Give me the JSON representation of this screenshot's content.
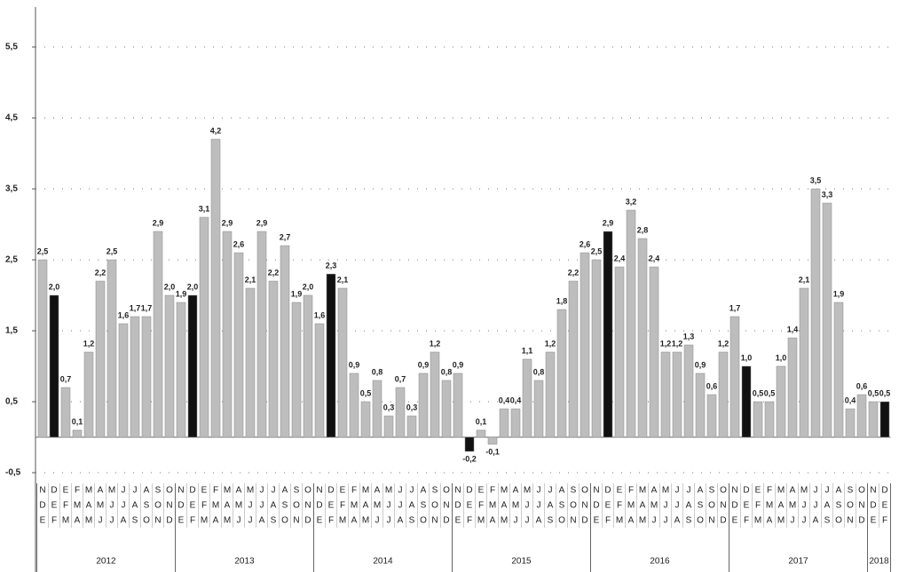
{
  "chart_data": {
    "type": "bar",
    "categories": [
      [
        "N",
        "D",
        "E"
      ],
      [
        "D",
        "E",
        "F"
      ],
      [
        "E",
        "F",
        "M"
      ],
      [
        "F",
        "M",
        "A"
      ],
      [
        "M",
        "A",
        "M"
      ],
      [
        "A",
        "M",
        "J"
      ],
      [
        "M",
        "J",
        "J"
      ],
      [
        "J",
        "J",
        "A"
      ],
      [
        "J",
        "A",
        "S"
      ],
      [
        "A",
        "S",
        "O"
      ],
      [
        "S",
        "O",
        "N"
      ],
      [
        "O",
        "N",
        "D"
      ],
      [
        "N",
        "D",
        "E"
      ],
      [
        "D",
        "E",
        "F"
      ],
      [
        "E",
        "F",
        "M"
      ],
      [
        "F",
        "M",
        "A"
      ],
      [
        "M",
        "A",
        "M"
      ],
      [
        "A",
        "M",
        "J"
      ],
      [
        "M",
        "J",
        "J"
      ],
      [
        "J",
        "J",
        "A"
      ],
      [
        "J",
        "A",
        "S"
      ],
      [
        "A",
        "S",
        "O"
      ],
      [
        "S",
        "O",
        "N"
      ],
      [
        "O",
        "N",
        "D"
      ],
      [
        "N",
        "D",
        "E"
      ],
      [
        "D",
        "E",
        "F"
      ],
      [
        "E",
        "F",
        "M"
      ],
      [
        "F",
        "M",
        "A"
      ],
      [
        "M",
        "A",
        "M"
      ],
      [
        "A",
        "M",
        "J"
      ],
      [
        "M",
        "J",
        "J"
      ],
      [
        "J",
        "J",
        "A"
      ],
      [
        "J",
        "A",
        "S"
      ],
      [
        "A",
        "S",
        "O"
      ],
      [
        "S",
        "O",
        "N"
      ],
      [
        "O",
        "N",
        "D"
      ],
      [
        "N",
        "D",
        "E"
      ],
      [
        "D",
        "E",
        "F"
      ],
      [
        "E",
        "F",
        "M"
      ],
      [
        "F",
        "M",
        "A"
      ],
      [
        "M",
        "A",
        "M"
      ],
      [
        "A",
        "M",
        "J"
      ],
      [
        "M",
        "J",
        "J"
      ],
      [
        "J",
        "J",
        "A"
      ],
      [
        "J",
        "A",
        "S"
      ],
      [
        "A",
        "S",
        "O"
      ],
      [
        "S",
        "O",
        "N"
      ],
      [
        "O",
        "N",
        "D"
      ],
      [
        "N",
        "D",
        "E"
      ],
      [
        "D",
        "E",
        "F"
      ],
      [
        "E",
        "F",
        "M"
      ],
      [
        "F",
        "M",
        "A"
      ],
      [
        "M",
        "A",
        "M"
      ],
      [
        "A",
        "M",
        "J"
      ],
      [
        "M",
        "J",
        "J"
      ],
      [
        "J",
        "J",
        "A"
      ],
      [
        "J",
        "A",
        "S"
      ],
      [
        "A",
        "S",
        "O"
      ],
      [
        "S",
        "O",
        "N"
      ],
      [
        "O",
        "N",
        "D"
      ],
      [
        "N",
        "D",
        "E"
      ],
      [
        "D",
        "E",
        "F"
      ],
      [
        "E",
        "F",
        "M"
      ],
      [
        "F",
        "M",
        "A"
      ],
      [
        "M",
        "A",
        "M"
      ],
      [
        "A",
        "M",
        "J"
      ],
      [
        "M",
        "J",
        "J"
      ],
      [
        "J",
        "J",
        "A"
      ],
      [
        "J",
        "A",
        "S"
      ],
      [
        "A",
        "S",
        "O"
      ],
      [
        "S",
        "O",
        "N"
      ],
      [
        "O",
        "N",
        "D"
      ],
      [
        "N",
        "D",
        "E"
      ],
      [
        "D",
        "E",
        "F"
      ]
    ],
    "years": [
      "2012",
      "2013",
      "2014",
      "2015",
      "2016",
      "2017",
      "2018"
    ],
    "values": [
      2.5,
      2.0,
      0.7,
      0.1,
      1.2,
      2.2,
      2.5,
      1.6,
      1.7,
      1.7,
      2.9,
      2.0,
      1.9,
      2.0,
      3.1,
      4.2,
      2.9,
      2.6,
      2.1,
      2.9,
      2.2,
      2.7,
      1.9,
      2.0,
      1.6,
      2.3,
      2.1,
      0.9,
      0.5,
      0.8,
      0.3,
      0.7,
      0.3,
      0.9,
      1.2,
      0.8,
      0.9,
      -0.2,
      0.1,
      -0.1,
      0.4,
      0.4,
      1.1,
      0.8,
      1.2,
      1.8,
      2.2,
      2.6,
      2.5,
      2.9,
      2.4,
      3.2,
      2.8,
      2.4,
      1.2,
      1.2,
      1.3,
      0.9,
      0.6,
      1.2,
      1.7,
      1.0,
      0.5,
      0.5,
      1.0,
      1.4,
      2.1,
      3.5,
      3.3,
      1.9,
      0.4,
      0.6,
      0.5,
      0.5
    ],
    "value_labels": [
      "2,5",
      "2,0",
      "0,7",
      "0,1",
      "1,2",
      "2,2",
      "2,5",
      "1,6",
      "1,7",
      "1,7",
      "2,9",
      "2,0",
      "1,9",
      "2,0",
      "3,1",
      "4,2",
      "2,9",
      "2,6",
      "2,1",
      "2,9",
      "2,2",
      "2,7",
      "1,9",
      "2,0",
      "1,6",
      "2,3",
      "2,1",
      "0,9",
      "0,5",
      "0,8",
      "0,3",
      "0,7",
      "0,3",
      "0,9",
      "1,2",
      "0,8",
      "0,9",
      "-0,2",
      "0,1",
      "-0,1",
      "0,4",
      "0,4",
      "1,1",
      "0,8",
      "1,2",
      "1,8",
      "2,2",
      "2,6",
      "2,5",
      "2,9",
      "2,4",
      "3,2",
      "2,8",
      "2,4",
      "1,2",
      "1,2",
      "1,3",
      "0,9",
      "0,6",
      "1,2",
      "1,7",
      "1,0",
      "0,5",
      "0,5",
      "1,0",
      "1,4",
      "2,1",
      "3,5",
      "3,3",
      "1,9",
      "0,4",
      "0,6",
      "0,5",
      "0,5"
    ],
    "colors": [
      "#bdbdbd",
      "#111111",
      "#bdbdbd",
      "#bdbdbd",
      "#bdbdbd",
      "#bdbdbd",
      "#bdbdbd",
      "#bdbdbd",
      "#bdbdbd",
      "#bdbdbd",
      "#bdbdbd",
      "#bdbdbd",
      "#bdbdbd",
      "#111111",
      "#bdbdbd",
      "#bdbdbd",
      "#bdbdbd",
      "#bdbdbd",
      "#bdbdbd",
      "#bdbdbd",
      "#bdbdbd",
      "#bdbdbd",
      "#bdbdbd",
      "#bdbdbd",
      "#bdbdbd",
      "#111111",
      "#bdbdbd",
      "#bdbdbd",
      "#bdbdbd",
      "#bdbdbd",
      "#bdbdbd",
      "#bdbdbd",
      "#bdbdbd",
      "#bdbdbd",
      "#bdbdbd",
      "#bdbdbd",
      "#bdbdbd",
      "#111111",
      "#bdbdbd",
      "#bdbdbd",
      "#bdbdbd",
      "#bdbdbd",
      "#bdbdbd",
      "#bdbdbd",
      "#bdbdbd",
      "#bdbdbd",
      "#bdbdbd",
      "#bdbdbd",
      "#bdbdbd",
      "#111111",
      "#bdbdbd",
      "#bdbdbd",
      "#bdbdbd",
      "#bdbdbd",
      "#bdbdbd",
      "#bdbdbd",
      "#bdbdbd",
      "#bdbdbd",
      "#bdbdbd",
      "#bdbdbd",
      "#bdbdbd",
      "#111111",
      "#bdbdbd",
      "#bdbdbd",
      "#bdbdbd",
      "#bdbdbd",
      "#bdbdbd",
      "#bdbdbd",
      "#bdbdbd",
      "#bdbdbd",
      "#bdbdbd",
      "#bdbdbd",
      "#bdbdbd",
      "#111111"
    ],
    "ylim": [
      -0.6,
      6.0
    ],
    "yticks": [
      {
        "value": -0.5,
        "label": "-0,5"
      },
      {
        "value": 0.5,
        "label": "0,5"
      },
      {
        "value": 1.5,
        "label": "1,5"
      },
      {
        "value": 2.5,
        "label": "2,5"
      },
      {
        "value": 3.5,
        "label": "3,5"
      },
      {
        "value": 4.5,
        "label": "4,5"
      },
      {
        "value": 5.5,
        "label": "5,5"
      }
    ],
    "grid": true
  }
}
